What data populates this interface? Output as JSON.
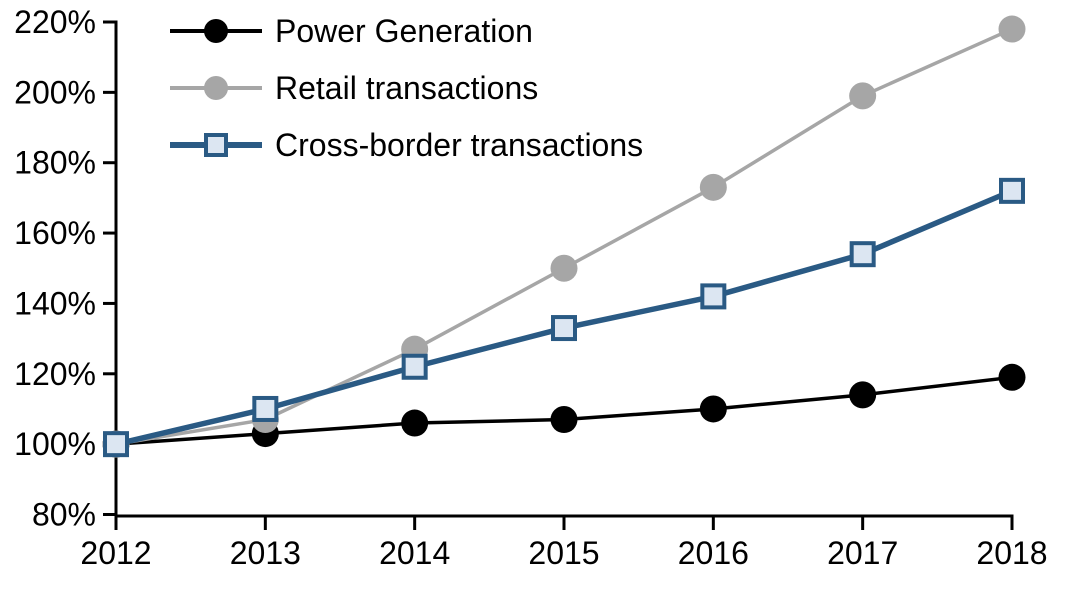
{
  "chart_data": {
    "type": "line",
    "title": "",
    "xlabel": "",
    "ylabel": "",
    "categories": [
      "2012",
      "2013",
      "2014",
      "2015",
      "2016",
      "2017",
      "2018"
    ],
    "series": [
      {
        "name": "Power Generation",
        "color": "#000000",
        "marker": "circle",
        "marker_fill": "#000000",
        "values": [
          100,
          103,
          106,
          107,
          110,
          114,
          119
        ]
      },
      {
        "name": "Retail transactions",
        "color": "#A6A6A6",
        "marker": "circle",
        "marker_fill": "#A6A6A6",
        "values": [
          100,
          107,
          127,
          150,
          173,
          199,
          218
        ]
      },
      {
        "name": "Cross-border transactions",
        "color": "#2A5A84",
        "marker": "square",
        "marker_fill": "#DCE6F2",
        "values": [
          100,
          110,
          122,
          133,
          142,
          154,
          172
        ]
      }
    ],
    "ylim": [
      80,
      220
    ],
    "ytick_step": 20,
    "ytick_labels": [
      "80%",
      "100%",
      "120%",
      "140%",
      "160%",
      "180%",
      "200%",
      "220%"
    ],
    "xtick_labels": [
      "2012",
      "2013",
      "2014",
      "2015",
      "2016",
      "2017",
      "2018"
    ],
    "grid": false,
    "legend_position": "top-left",
    "axis_color": "#000000",
    "background_color": "#FFFFFF"
  }
}
